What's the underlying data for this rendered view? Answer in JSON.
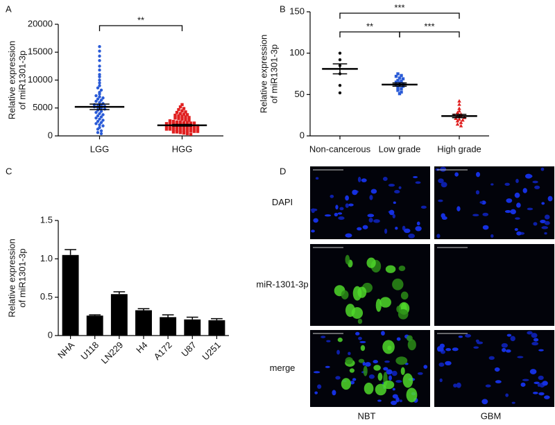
{
  "chart_data": [
    {
      "type": "dot",
      "panel": "A",
      "ylabel": [
        "Relative expression",
        "of  miR1301-3p"
      ],
      "categories": [
        "LGG",
        "HGG"
      ],
      "colors": [
        "#2a5bd7",
        "#e02020"
      ],
      "markers": [
        "circle",
        "square"
      ],
      "points": [
        [
          16000,
          15200,
          14300,
          13500,
          12500,
          11800,
          11000,
          10600,
          10000,
          9500,
          9000,
          8600,
          8200,
          7800,
          7500,
          7200,
          7000,
          6800,
          6600,
          6400,
          6200,
          6000,
          5800,
          5600,
          5500,
          5400,
          5300,
          5200,
          5100,
          5000,
          4800,
          4600,
          4400,
          4200,
          4000,
          3800,
          3600,
          3400,
          3200,
          3000,
          2800,
          2600,
          2400,
          2200,
          2000,
          1800,
          1500,
          1200,
          900,
          600,
          400
        ],
        [
          5600,
          5200,
          4900,
          4700,
          4500,
          4300,
          4200,
          4000,
          3900,
          3800,
          3700,
          3600,
          3500,
          3400,
          3300,
          3200,
          3100,
          3000,
          2900,
          2800,
          2700,
          2600,
          2500,
          2500,
          2400,
          2400,
          2300,
          2300,
          2200,
          2200,
          2100,
          2100,
          2000,
          2000,
          1900,
          1900,
          1800,
          1800,
          1700,
          1700,
          1600,
          1600,
          1500,
          1500,
          1400,
          1400,
          1300,
          1300,
          1200,
          1200,
          1100,
          1100,
          1000,
          1000,
          900,
          900,
          800,
          800,
          700,
          700,
          600,
          500,
          400,
          300
        ]
      ],
      "means": [
        5200,
        1900
      ],
      "errors": [
        500,
        150
      ],
      "comparisons": [
        {
          "groups": [
            0,
            1
          ],
          "label": "**"
        }
      ],
      "ylim": [
        0,
        20000
      ],
      "yticks": [
        0,
        5000,
        10000,
        15000,
        20000
      ]
    },
    {
      "type": "dot",
      "panel": "B",
      "ylabel": [
        "Relative expression",
        "of  miR1301-3p"
      ],
      "categories": [
        "Non-cancerous",
        "Low grade",
        "High grade"
      ],
      "colors": [
        "#111111",
        "#2a5bd7",
        "#e02020"
      ],
      "markers": [
        "circle",
        "square",
        "triangle"
      ],
      "points": [
        [
          100,
          92,
          85,
          75,
          61,
          52
        ],
        [
          75,
          73,
          72,
          70,
          69,
          67,
          66,
          65,
          64,
          63,
          62,
          61,
          60,
          58,
          57,
          55,
          53,
          51
        ],
        [
          42,
          38,
          33,
          30,
          28,
          26,
          25,
          24,
          23,
          22,
          21,
          20,
          19,
          18,
          16,
          14,
          12
        ]
      ],
      "means": [
        81,
        62,
        24
      ],
      "errors": [
        6,
        2,
        2
      ],
      "comparisons": [
        {
          "groups": [
            0,
            1
          ],
          "label": "**"
        },
        {
          "groups": [
            1,
            2
          ],
          "label": "***"
        },
        {
          "groups": [
            0,
            2
          ],
          "label": "***"
        }
      ],
      "ylim": [
        0,
        150
      ],
      "yticks": [
        0,
        50,
        100,
        150
      ]
    },
    {
      "type": "bar",
      "panel": "C",
      "ylabel": [
        "Relative expression",
        "of miR1301-3p"
      ],
      "categories": [
        "NHA",
        "U118",
        "LN229",
        "H4",
        "A172",
        "U87",
        "U251"
      ],
      "values": [
        1.05,
        0.26,
        0.54,
        0.33,
        0.24,
        0.21,
        0.2
      ],
      "errors": [
        0.07,
        0.01,
        0.03,
        0.02,
        0.03,
        0.03,
        0.02
      ],
      "color": "#000000",
      "ylim": [
        0,
        1.5
      ],
      "yticks": [
        0,
        0.5,
        {
          "value": 1,
          "label": "1.0"
        },
        1.5
      ]
    }
  ],
  "image_panel": {
    "panel": "D",
    "rows": [
      "DAPI",
      "miR-1301-3p",
      "merge"
    ],
    "columns": [
      "NBT",
      "GBM"
    ]
  }
}
